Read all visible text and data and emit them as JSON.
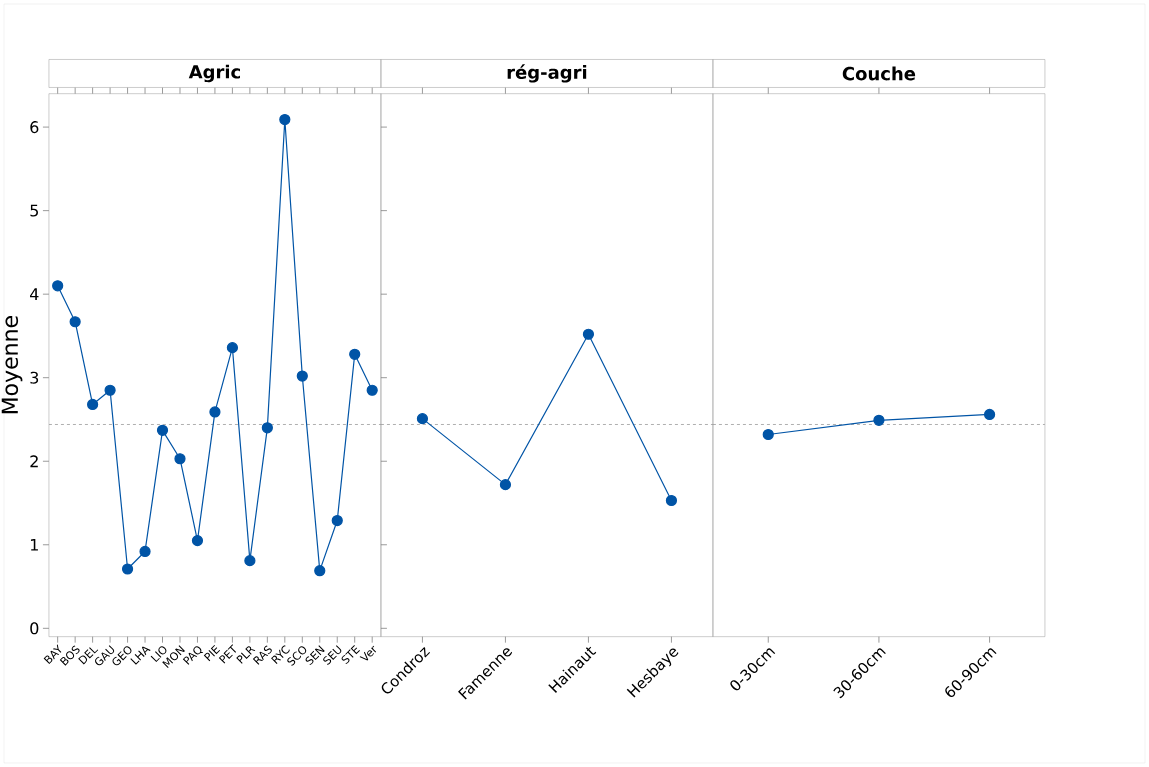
{
  "chart_data": [
    {
      "type": "line",
      "title": "Agric",
      "ylabel": "Moyenne",
      "categories": [
        "BAY",
        "BOS",
        "DEL",
        "GAU",
        "GEO",
        "LHA",
        "LIO",
        "MON",
        "PAQ",
        "PIE",
        "PET",
        "PLR",
        "RAS",
        "RYC",
        "SCO",
        "SEN",
        "SEU",
        "STE",
        "Ver"
      ],
      "series": [
        {
          "color": "#0054a6",
          "values": [
            4.1,
            3.67,
            2.68,
            2.85,
            0.71,
            0.92,
            2.37,
            2.03,
            1.05,
            2.59,
            3.36,
            0.81,
            2.4,
            6.09,
            3.02,
            0.69,
            1.29,
            3.28,
            2.85
          ]
        }
      ],
      "ylim": [
        -0.1,
        6.4
      ],
      "yticks": [
        0,
        1,
        2,
        3,
        4,
        5,
        6
      ],
      "marker": "circle",
      "line_style": "solid",
      "ref_lines": [
        {
          "axis": "y",
          "value": 2.44,
          "color": "#999999",
          "line_style": "dashed"
        }
      ]
    },
    {
      "type": "line",
      "title": "rég-agri",
      "categories": [
        "Condroz",
        "Famenne",
        "Hainaut",
        "Hesbaye"
      ],
      "series": [
        {
          "color": "#0054a6",
          "values": [
            2.51,
            1.72,
            3.52,
            1.53
          ]
        }
      ],
      "ylim": [
        -0.1,
        6.4
      ],
      "tick_labels": "x",
      "marker": "circle",
      "line_style": "solid",
      "ref_lines": [
        {
          "axis": "y",
          "value": 2.44,
          "color": "#999999",
          "line_style": "dashed"
        }
      ]
    },
    {
      "type": "line",
      "title": "Couche",
      "categories": [
        "0-30cm",
        "30-60cm",
        "60-90cm"
      ],
      "series": [
        {
          "color": "#0054a6",
          "values": [
            2.32,
            2.49,
            2.56
          ]
        }
      ],
      "ylim": [
        -0.1,
        6.4
      ],
      "tick_labels": "x",
      "marker": "circle",
      "line_style": "solid",
      "ref_lines": [
        {
          "axis": "y",
          "value": 2.44,
          "color": "#999999",
          "line_style": "dashed"
        }
      ]
    }
  ]
}
